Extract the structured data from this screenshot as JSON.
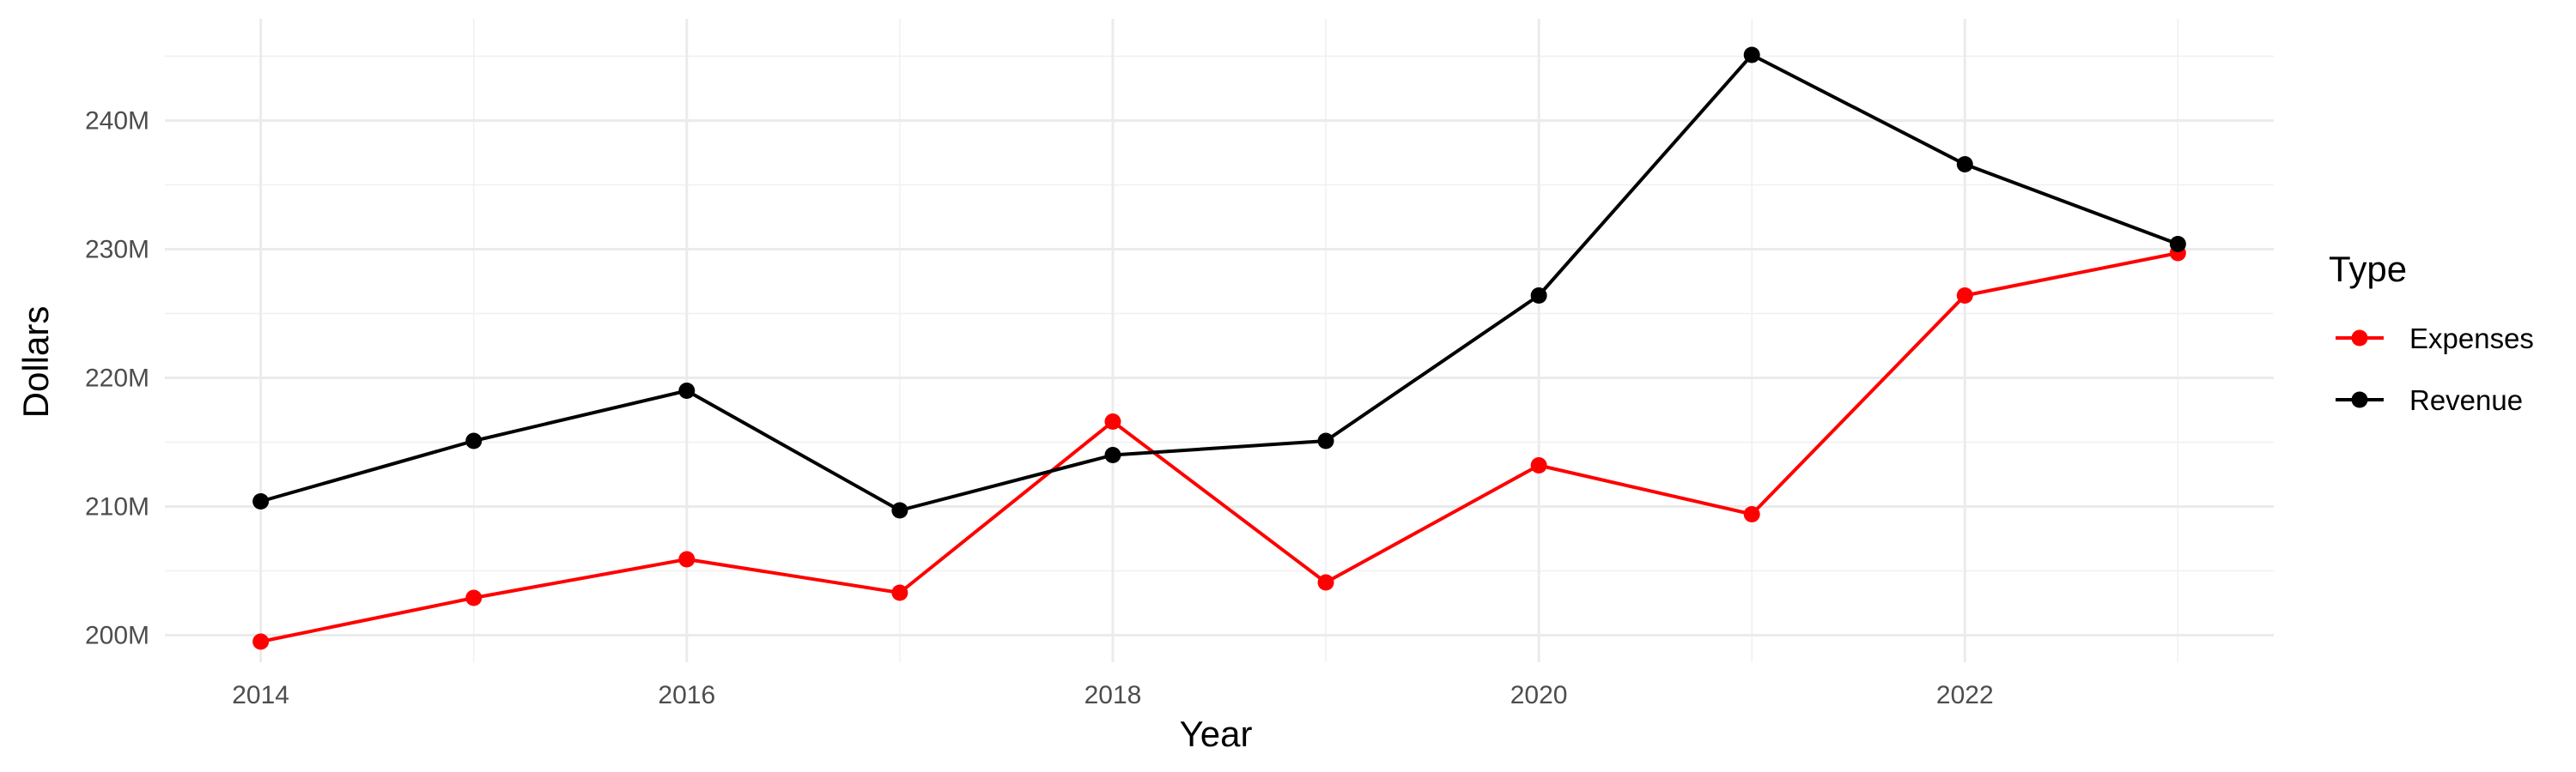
{
  "chart_data": {
    "type": "line",
    "xlabel": "Year",
    "ylabel": "Dollars",
    "x": [
      2014,
      2015,
      2016,
      2017,
      2018,
      2019,
      2020,
      2021,
      2022,
      2023
    ],
    "xlim": [
      2013.55,
      2023.45
    ],
    "ylim": [
      197.9,
      247.9
    ],
    "x_ticks": [
      2014,
      2016,
      2018,
      2020,
      2022
    ],
    "x_tick_labels": [
      "2014",
      "2016",
      "2018",
      "2020",
      "2022"
    ],
    "y_ticks": [
      200,
      210,
      220,
      230,
      240
    ],
    "y_tick_labels": [
      "200M",
      "210M",
      "220M",
      "230M",
      "240M"
    ],
    "y_unit": "M",
    "grid": true,
    "legend": {
      "title": "Type",
      "position": "right",
      "entries": [
        "Expenses",
        "Revenue"
      ]
    },
    "series": [
      {
        "name": "Expenses",
        "color": "#ff0000",
        "values": [
          199.5,
          202.9,
          205.9,
          203.3,
          216.6,
          204.1,
          213.2,
          209.4,
          226.4,
          229.7
        ]
      },
      {
        "name": "Revenue",
        "color": "#000000",
        "values": [
          210.4,
          215.1,
          219.0,
          209.7,
          214.0,
          215.1,
          226.4,
          245.1,
          236.6,
          230.4
        ]
      }
    ]
  }
}
